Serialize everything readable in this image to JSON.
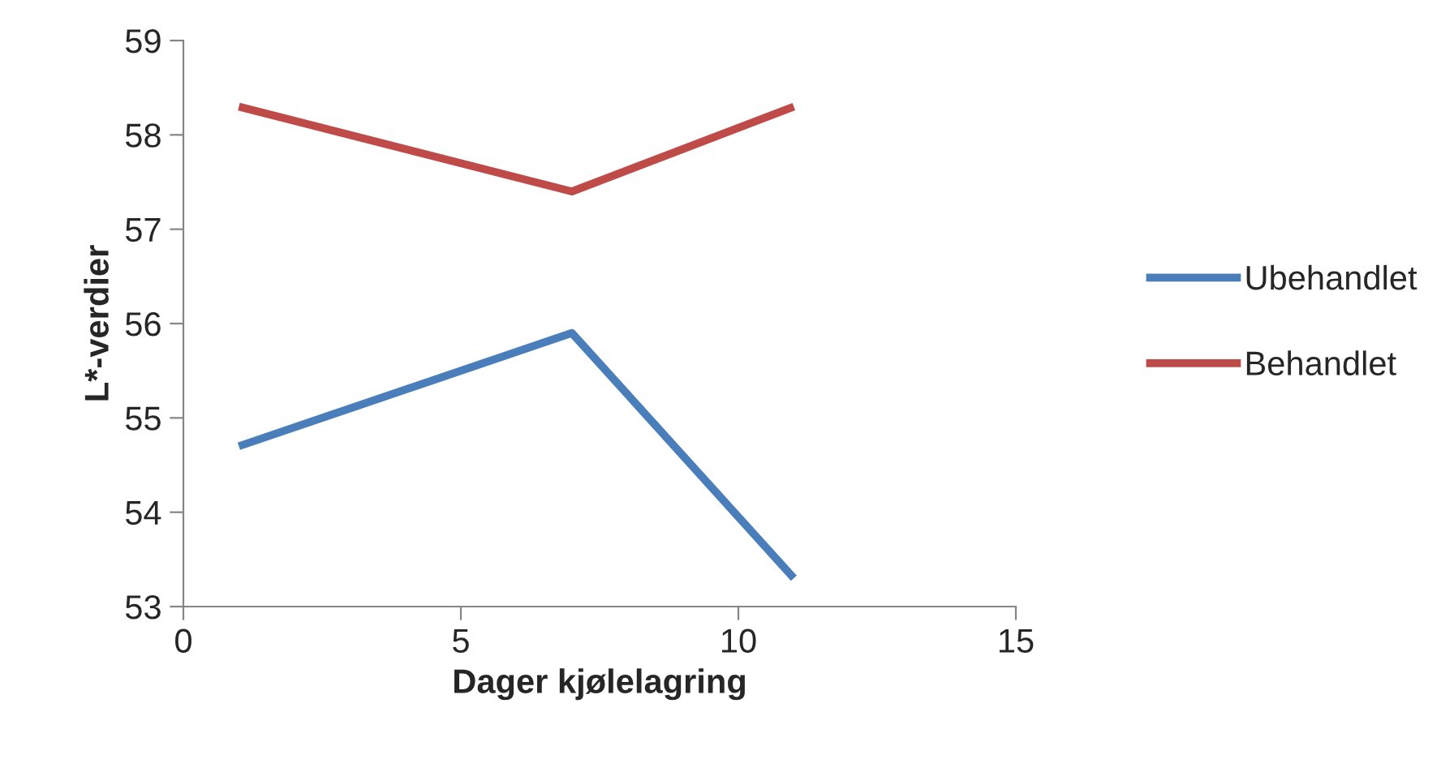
{
  "chart_data": {
    "type": "line",
    "xlabel": "Dager kjølelagring",
    "ylabel": "L*-verdier",
    "x": [
      1,
      7,
      11
    ],
    "series": [
      {
        "name": "Ubehandlet",
        "color": "#4a7ebb",
        "values": [
          54.7,
          55.9,
          53.3
        ]
      },
      {
        "name": "Behandlet",
        "color": "#be4b48",
        "values": [
          58.3,
          57.4,
          58.3
        ]
      }
    ],
    "xlim": [
      0,
      15
    ],
    "xticks": [
      0,
      5,
      10,
      15
    ],
    "ylim": [
      53,
      59
    ],
    "yticks": [
      53,
      54,
      55,
      56,
      57,
      58,
      59
    ],
    "grid": false,
    "legend": "right",
    "marker": "none",
    "line_style": "solid"
  }
}
